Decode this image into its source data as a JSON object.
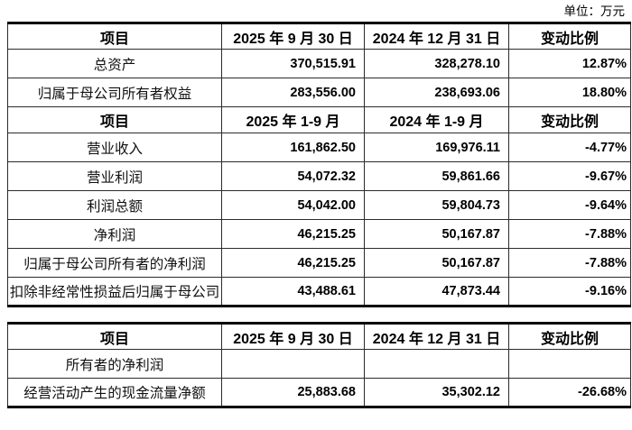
{
  "page": {
    "unit_label": "单位：万元"
  },
  "tables": [
    {
      "name": "balance-sheet-and-income",
      "sections": [
        {
          "header": [
            "项目",
            "2025 年 9 月 30 日",
            "2024 年 12 月 31 日",
            "变动比例"
          ],
          "rows": [
            [
              "总资产",
              "370,515.91",
              "328,278.10",
              "12.87%"
            ],
            [
              "归属于母公司所有者权益",
              "283,556.00",
              "238,693.06",
              "18.80%"
            ]
          ]
        },
        {
          "header": [
            "项目",
            "2025 年 1-9 月",
            "2024 年 1-9 月",
            "变动比例"
          ],
          "rows": [
            [
              "营业收入",
              "161,862.50",
              "169,976.11",
              "-4.77%"
            ],
            [
              "营业利润",
              "54,072.32",
              "59,861.66",
              "-9.67%"
            ],
            [
              "利润总额",
              "54,042.00",
              "59,804.73",
              "-9.64%"
            ],
            [
              "净利润",
              "46,215.25",
              "50,167.87",
              "-7.88%"
            ],
            [
              "归属于母公司所有者的净利润",
              "46,215.25",
              "50,167.87",
              "-7.88%"
            ],
            [
              "扣除非经常性损益后归属于母公司",
              "43,488.61",
              "47,873.44",
              "-9.16%"
            ]
          ]
        }
      ]
    },
    {
      "name": "cash-flow",
      "sections": [
        {
          "header": [
            "项目",
            "2025 年 9 月 30 日",
            "2024 年 12 月 31 日",
            "变动比例"
          ],
          "rows": [
            [
              "所有者的净利润",
              "",
              "",
              ""
            ],
            [
              "经营活动产生的现金流量净额",
              "25,883.68",
              "35,302.12",
              "-26.68%"
            ]
          ]
        }
      ]
    }
  ]
}
